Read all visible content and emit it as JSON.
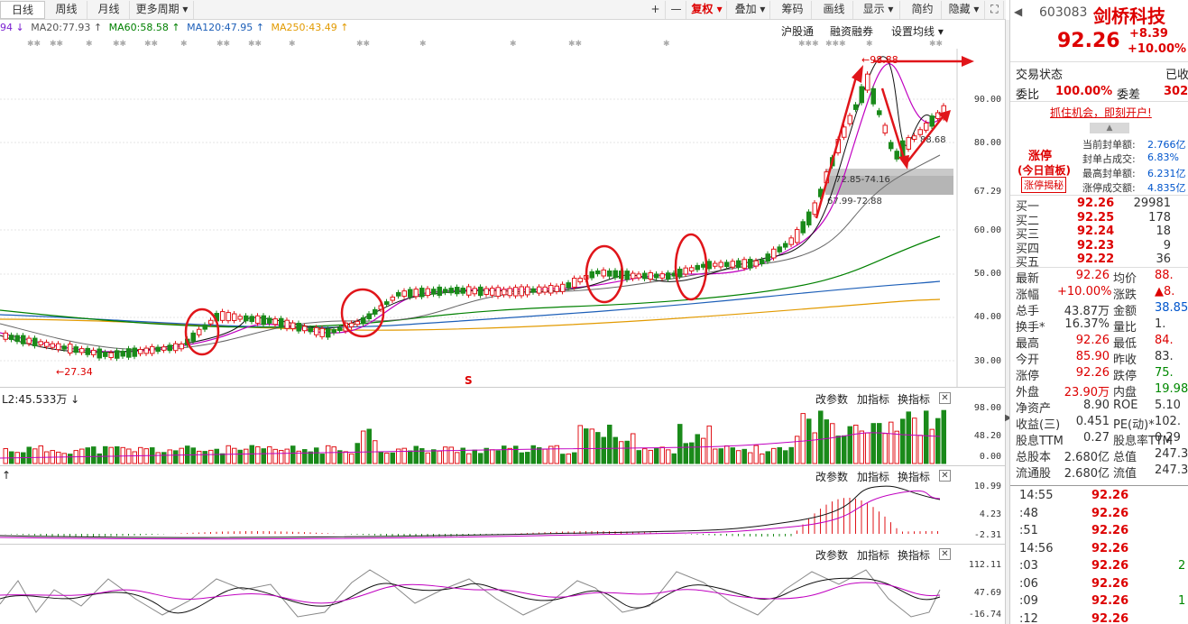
{
  "toolbar": {
    "tabs": [
      "日线",
      "周线",
      "月线",
      "更多周期 ▾"
    ],
    "right_buttons": [
      "+",
      "—",
      "复权 ▾",
      "叠加 ▾",
      "筹码",
      "画线",
      "显示 ▾",
      "简约",
      "隐藏 ▾",
      "⛶"
    ]
  },
  "ma_legend": [
    {
      "text": "94 ↓",
      "color": "#7a1fd0"
    },
    {
      "text": "MA20:77.93 ↑",
      "color": "#555555"
    },
    {
      "text": "MA60:58.58 ↑",
      "color": "#008000"
    },
    {
      "text": "MA120:47.95 ↑",
      "color": "#1d5fb8"
    },
    {
      "text": "MA250:43.49 ↑",
      "color": "#e29a00"
    }
  ],
  "top_links": [
    "沪股通",
    "融资融券",
    "设置均线 ▾"
  ],
  "price_axis": [
    "90.00",
    "80.00",
    "67.29",
    "60.00",
    "50.00",
    "40.00",
    "30.00"
  ],
  "chart_labels": {
    "low_marker": "←27.34",
    "high_marker": "←98.88",
    "level_1": "72.85-74.16",
    "level_2": "67.99-72.88",
    "level_3": "88.68",
    "s_marker": "S"
  },
  "volume_panel": {
    "title": "L2:45.533万 ↓",
    "axis": [
      "98.00",
      "48.20",
      "0.00"
    ]
  },
  "macd_panel": {
    "axis": [
      "10.99",
      "4.23",
      "-2.31"
    ]
  },
  "kdj_panel": {
    "axis": [
      "112.11",
      "47.69",
      "-16.74"
    ]
  },
  "panel_controls": [
    "改参数",
    "加指标",
    "换指标"
  ],
  "panel_close": "✕",
  "stock": {
    "code": "603083",
    "name": "剑桥科技",
    "price": "92.26",
    "change": "+8.39",
    "change_pct": "+10.00%"
  },
  "trade_status": {
    "label": "交易状态",
    "value": "已收"
  },
  "weibi": {
    "label1": "委比",
    "value1": "100.00%",
    "label2": "委差",
    "value2": "302"
  },
  "promo": "抓住机会，即刻开户!",
  "limit": {
    "title": "涨停",
    "sub": "(今日首板)",
    "button": "涨停揭秘",
    "rows": [
      {
        "label": "当前封单额:",
        "value": "2.766亿"
      },
      {
        "label": "封单占成交:",
        "value": "6.83%"
      },
      {
        "label": "最高封单额:",
        "value": "6.231亿"
      },
      {
        "label": "涨停成交额:",
        "value": "4.835亿"
      }
    ]
  },
  "bids": [
    {
      "label": "买一",
      "price": "92.26",
      "vol": "29981"
    },
    {
      "label": "买二",
      "price": "92.25",
      "vol": "178"
    },
    {
      "label": "买三",
      "price": "92.24",
      "vol": "18"
    },
    {
      "label": "买四",
      "price": "92.23",
      "vol": "9"
    },
    {
      "label": "买五",
      "price": "92.22",
      "vol": "36"
    }
  ],
  "stats": [
    {
      "l1": "最新",
      "v1": "92.26",
      "c1": "red",
      "l2": "均价",
      "v2": "88.",
      "c2": "red"
    },
    {
      "l1": "涨幅",
      "v1": "+10.00%",
      "c1": "red",
      "l2": "涨跌",
      "v2": "▲8.",
      "c2": "red"
    },
    {
      "l1": "总手",
      "v1": "43.87万",
      "c1": "",
      "l2": "金额",
      "v2": "38.85",
      "c2": "blue"
    },
    {
      "l1": "换手*",
      "v1": "16.37%",
      "c1": "",
      "l2": "量比",
      "v2": "1.",
      "c2": ""
    },
    {
      "l1": "最高",
      "v1": "92.26",
      "c1": "red",
      "l2": "最低",
      "v2": "84.",
      "c2": "red"
    },
    {
      "l1": "今开",
      "v1": "85.90",
      "c1": "red",
      "l2": "昨收",
      "v2": "83.",
      "c2": ""
    },
    {
      "l1": "涨停",
      "v1": "92.26",
      "c1": "red",
      "l2": "跌停",
      "v2": "75.",
      "c2": "green"
    },
    {
      "l1": "外盘",
      "v1": "23.90万",
      "c1": "red",
      "l2": "内盘",
      "v2": "19.98",
      "c2": "green"
    },
    {
      "l1": "净资产",
      "v1": "8.90",
      "c1": "",
      "l2": "ROE",
      "v2": "5.10",
      "c2": ""
    },
    {
      "l1": "收益(三)",
      "v1": "0.451",
      "c1": "",
      "l2": "PE(动)*",
      "v2": "102.",
      "c2": ""
    },
    {
      "l1": "股息TTM",
      "v1": "0.27",
      "c1": "",
      "l2": "股息率TTM",
      "v2": "0.29",
      "c2": ""
    },
    {
      "l1": "总股本",
      "v1": "2.680亿",
      "c1": "",
      "l2": "总值",
      "v2": "247.3",
      "c2": ""
    },
    {
      "l1": "流通股",
      "v1": "2.680亿",
      "c1": "",
      "l2": "流值",
      "v2": "247.3",
      "c2": ""
    }
  ],
  "ticks": [
    {
      "time": "14:55",
      "price": "92.26",
      "vol": ""
    },
    {
      "time": ":48",
      "price": "92.26",
      "vol": ""
    },
    {
      "time": ":51",
      "price": "92.26",
      "vol": ""
    },
    {
      "time": "14:56",
      "price": "92.26",
      "vol": ""
    },
    {
      "time": ":03",
      "price": "92.26",
      "vol": "2"
    },
    {
      "time": ":06",
      "price": "92.26",
      "vol": ""
    },
    {
      "time": ":09",
      "price": "92.26",
      "vol": "1"
    },
    {
      "time": ":12",
      "price": "92.26",
      "vol": ""
    }
  ]
}
